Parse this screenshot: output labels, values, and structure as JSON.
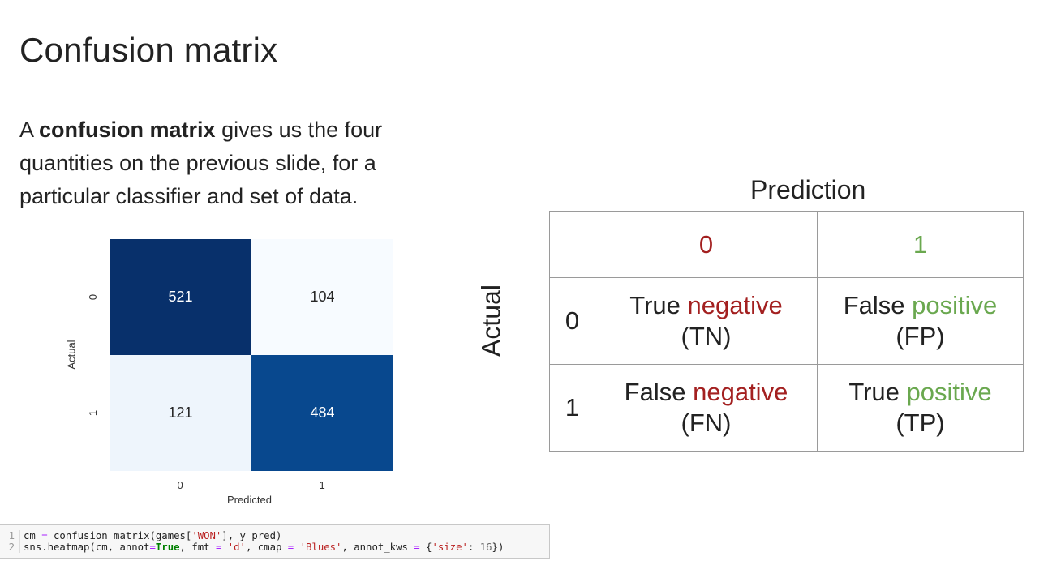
{
  "slide": {
    "title": "Confusion matrix",
    "intro_prefix": "A ",
    "intro_bold": "confusion matrix",
    "intro_rest": " gives us the four quantities on the previous slide, for a particular classifier and set of data."
  },
  "heatmap": {
    "values": [
      [
        521,
        104
      ],
      [
        121,
        484
      ]
    ],
    "x_ticks": [
      "0",
      "1"
    ],
    "y_ticks": [
      "0",
      "1"
    ],
    "xlabel": "Predicted",
    "ylabel": "Actual",
    "colors": [
      [
        "#08306b",
        "#f7fbff"
      ],
      [
        "#eef5fc",
        "#08488e"
      ]
    ],
    "text_colors": [
      [
        "#ffffff",
        "#262626"
      ],
      [
        "#262626",
        "#ffffff"
      ]
    ]
  },
  "code": {
    "lines": [
      {
        "num": "1",
        "parts": [
          {
            "t": "cm "
          },
          {
            "t": "=",
            "c": "op"
          },
          {
            "t": " confusion_matrix(games["
          },
          {
            "t": "'WON'",
            "c": "str"
          },
          {
            "t": "], y_pred)"
          }
        ]
      },
      {
        "num": "2",
        "parts": [
          {
            "t": "sns.heatmap(cm, annot"
          },
          {
            "t": "=",
            "c": "op"
          },
          {
            "t": "True",
            "c": "kw"
          },
          {
            "t": ", fmt "
          },
          {
            "t": "=",
            "c": "op"
          },
          {
            "t": " "
          },
          {
            "t": "'d'",
            "c": "str"
          },
          {
            "t": ", cmap "
          },
          {
            "t": "=",
            "c": "op"
          },
          {
            "t": " "
          },
          {
            "t": "'Blues'",
            "c": "str"
          },
          {
            "t": ", annot_kws "
          },
          {
            "t": "=",
            "c": "op"
          },
          {
            "t": " {"
          },
          {
            "t": "'size'",
            "c": "str"
          },
          {
            "t": ": "
          },
          {
            "t": "16",
            "c": "num"
          },
          {
            "t": "})"
          }
        ]
      }
    ]
  },
  "table": {
    "prediction_header": "Prediction",
    "actual_header": "Actual",
    "pred_0": "0",
    "pred_1": "1",
    "actual_0": "0",
    "actual_1": "1",
    "tn": {
      "w1": "True",
      "w2": "negative",
      "abbr": "(TN)"
    },
    "fp": {
      "w1": "False",
      "w2": "positive",
      "abbr": "(FP)"
    },
    "fn": {
      "w1": "False",
      "w2": "negative",
      "abbr": "(FN)"
    },
    "tp": {
      "w1": "True",
      "w2": "positive",
      "abbr": "(TP)"
    },
    "colors": {
      "negative": "#a32020",
      "positive": "#6aa84f"
    }
  },
  "chart_data": {
    "type": "heatmap",
    "x_categories": [
      "0",
      "1"
    ],
    "y_categories": [
      "0",
      "1"
    ],
    "values": [
      [
        521,
        104
      ],
      [
        121,
        484
      ]
    ],
    "xlabel": "Predicted",
    "ylabel": "Actual",
    "colormap": "Blues"
  }
}
